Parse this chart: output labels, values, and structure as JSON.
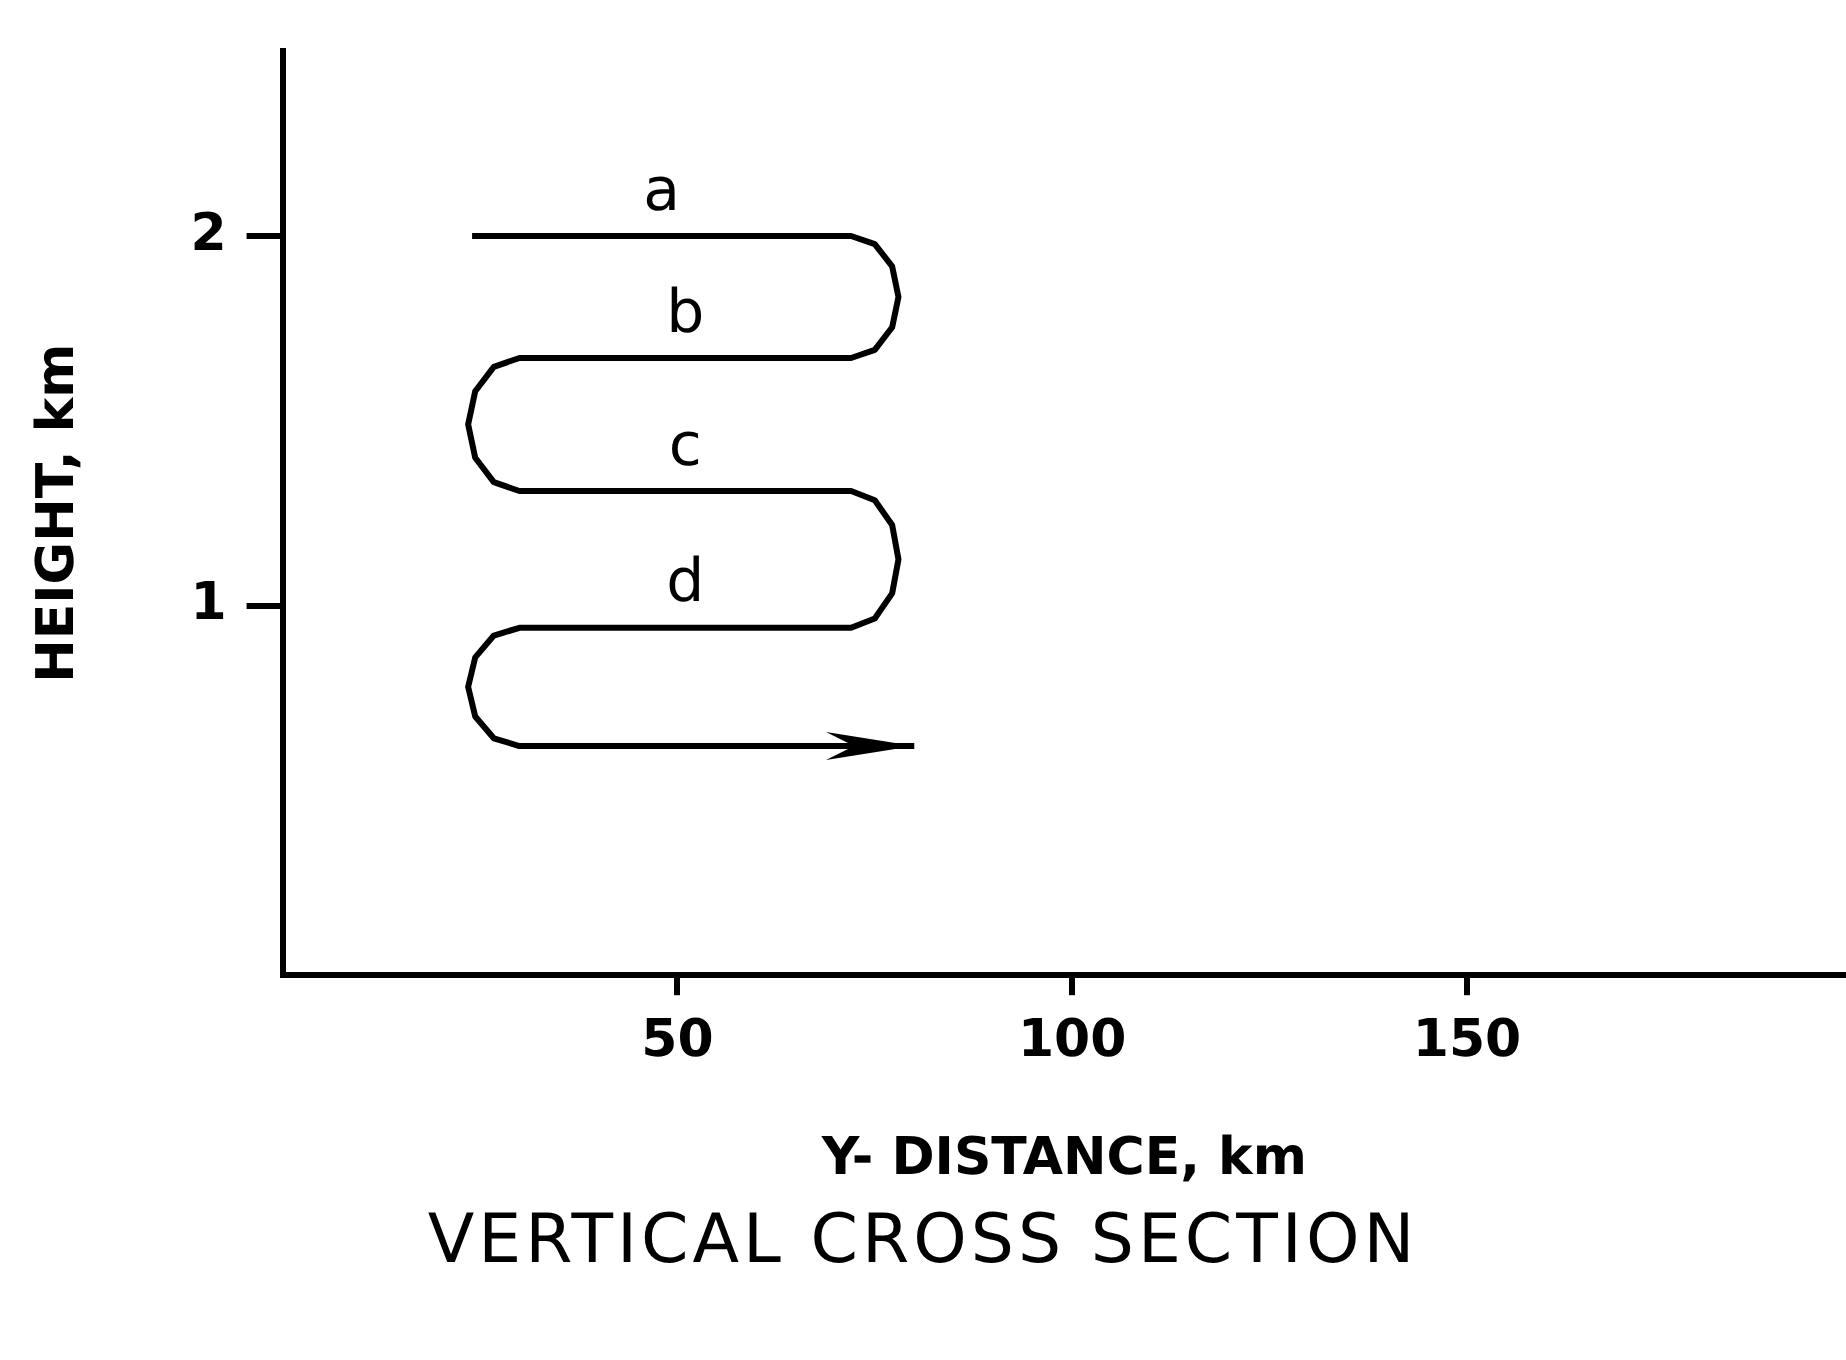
{
  "chart_data": {
    "type": "line",
    "title": "VERTICAL CROSS SECTION",
    "xlabel": "Y- DISTANCE, km",
    "ylabel": "HEIGHT, km",
    "x": [
      24,
      72,
      75,
      77.2,
      78,
      77.2,
      75,
      72,
      30,
      26.75,
      24.4,
      23.5,
      24.4,
      26.75,
      30,
      72,
      75,
      77.2,
      78,
      77.2,
      75,
      72,
      30,
      26.75,
      24.4,
      23.5,
      24.4,
      26.75,
      30,
      80
    ],
    "values": [
      2,
      2,
      1.978,
      1.918,
      1.835,
      1.753,
      1.692,
      1.67,
      1.67,
      1.646,
      1.58,
      1.49,
      1.4,
      1.334,
      1.31,
      1.31,
      1.285,
      1.218,
      1.125,
      1.033,
      0.965,
      0.94,
      0.94,
      0.919,
      0.86,
      0.78,
      0.7,
      0.641,
      0.62,
      0.62
    ],
    "color": "#000000",
    "marker": "none",
    "line_style": "solid",
    "xlim": [
      0,
      198
    ],
    "ylim": [
      0,
      2.5
    ],
    "xticks": [
      50,
      100,
      150
    ],
    "yticks": [
      1,
      2
    ],
    "annotations": [
      "a",
      "b",
      "c",
      "d"
    ]
  }
}
